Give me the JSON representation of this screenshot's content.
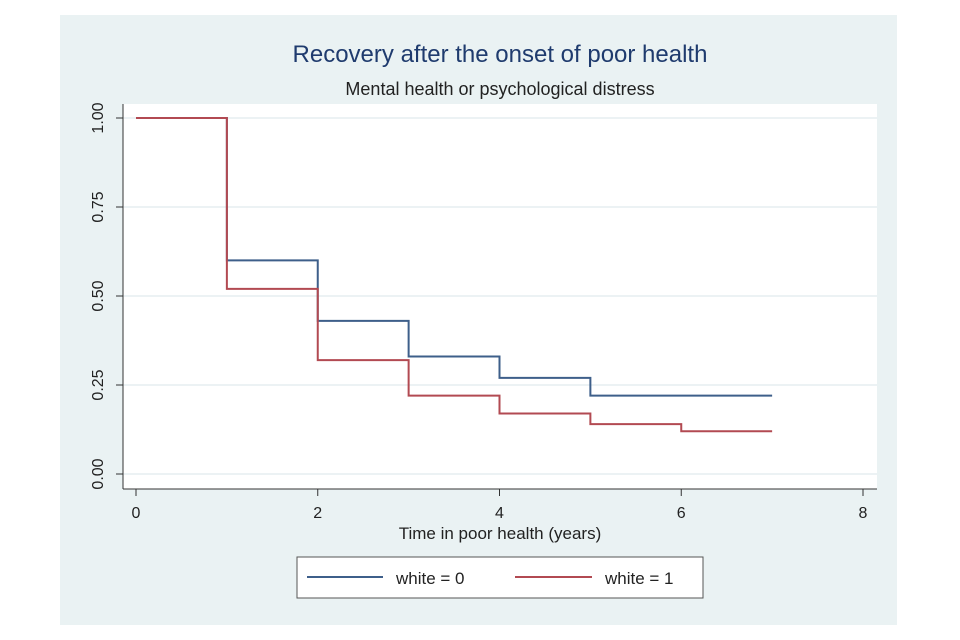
{
  "chart_data": {
    "type": "line",
    "step": true,
    "title": "Recovery after the onset of poor health",
    "subtitle": "Mental health or psychological distress",
    "xlabel": "Time in poor health (years)",
    "ylabel": "",
    "xlim": [
      0,
      8
    ],
    "ylim": [
      0,
      1
    ],
    "x_ticks": [
      0,
      2,
      4,
      6,
      8
    ],
    "x_tick_labels": [
      "0",
      "2",
      "4",
      "6",
      "8"
    ],
    "y_ticks": [
      0,
      0.25,
      0.5,
      0.75,
      1
    ],
    "y_tick_labels": [
      "0.00",
      "0.25",
      "0.50",
      "0.75",
      "1.00"
    ],
    "grid": true,
    "legend_position": "bottom",
    "series": [
      {
        "name": "white = 0",
        "color": "#3e5f8a",
        "x": [
          0,
          1,
          2,
          3,
          4,
          5,
          7
        ],
        "y": [
          1.0,
          0.6,
          0.43,
          0.33,
          0.27,
          0.22,
          0.22
        ]
      },
      {
        "name": "white = 1",
        "color": "#b24a52",
        "x": [
          0,
          1,
          2,
          3,
          4,
          5,
          6,
          7
        ],
        "y": [
          1.0,
          0.52,
          0.32,
          0.22,
          0.17,
          0.14,
          0.12,
          0.12
        ]
      }
    ]
  }
}
